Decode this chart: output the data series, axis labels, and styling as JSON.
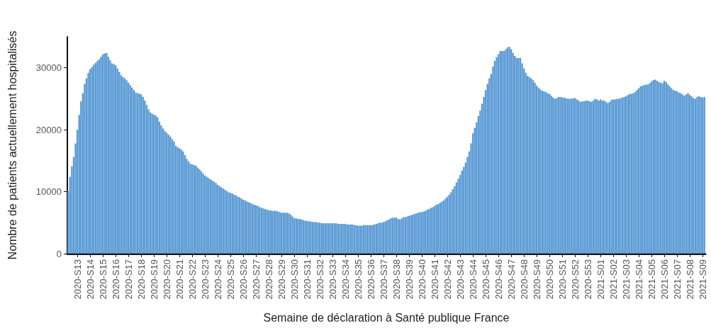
{
  "chart_data": {
    "type": "bar",
    "xlabel": "Semaine de déclaration à Santé publique France",
    "ylabel": "Nombre de patients actuellement hospitalisés",
    "categories": [
      null,
      null,
      null,
      null,
      null,
      "2020-S13",
      null,
      null,
      null,
      null,
      null,
      null,
      "2020-S14",
      null,
      null,
      null,
      null,
      null,
      null,
      "2020-S15",
      null,
      null,
      null,
      null,
      null,
      null,
      "2020-S16",
      null,
      null,
      null,
      null,
      null,
      null,
      "2020-S17",
      null,
      null,
      null,
      null,
      null,
      null,
      "2020-S18",
      null,
      null,
      null,
      null,
      null,
      null,
      "2020-S19",
      null,
      null,
      null,
      null,
      null,
      null,
      "2020-S20",
      null,
      null,
      null,
      null,
      null,
      null,
      "2020-S21",
      null,
      null,
      null,
      null,
      null,
      null,
      "2020-S22",
      null,
      null,
      null,
      null,
      null,
      null,
      "2020-S23",
      null,
      null,
      null,
      null,
      null,
      null,
      "2020-S24",
      null,
      null,
      null,
      null,
      null,
      null,
      "2020-S25",
      null,
      null,
      null,
      null,
      null,
      null,
      "2020-S26",
      null,
      null,
      null,
      null,
      null,
      null,
      "2020-S27",
      null,
      null,
      null,
      null,
      null,
      null,
      "2020-S28",
      null,
      null,
      null,
      null,
      null,
      null,
      "2020-S29",
      null,
      null,
      null,
      null,
      null,
      null,
      "2020-S30",
      null,
      null,
      null,
      null,
      null,
      null,
      "2020-S31",
      null,
      null,
      null,
      null,
      null,
      null,
      "2020-S32",
      null,
      null,
      null,
      null,
      null,
      null,
      "2020-S33",
      null,
      null,
      null,
      null,
      null,
      null,
      "2020-S34",
      null,
      null,
      null,
      null,
      null,
      null,
      "2020-S35",
      null,
      null,
      null,
      null,
      null,
      null,
      "2020-S36",
      null,
      null,
      null,
      null,
      null,
      null,
      "2020-S37",
      null,
      null,
      null,
      null,
      null,
      null,
      "2020-S38",
      null,
      null,
      null,
      null,
      null,
      null,
      "2020-S39",
      null,
      null,
      null,
      null,
      null,
      null,
      "2020-S40",
      null,
      null,
      null,
      null,
      null,
      null,
      "2020-S41",
      null,
      null,
      null,
      null,
      null,
      null,
      "2020-S42",
      null,
      null,
      null,
      null,
      null,
      null,
      "2020-S43",
      null,
      null,
      null,
      null,
      null,
      null,
      "2020-S44",
      null,
      null,
      null,
      null,
      null,
      null,
      "2020-S45",
      null,
      null,
      null,
      null,
      null,
      null,
      "2020-S46",
      null,
      null,
      null,
      null,
      null,
      null,
      "2020-S47",
      null,
      null,
      null,
      null,
      null,
      null,
      "2020-S48",
      null,
      null,
      null,
      null,
      null,
      null,
      "2020-S49",
      null,
      null,
      null,
      null,
      null,
      null,
      "2020-S50",
      null,
      null,
      null,
      null,
      null,
      null,
      "2020-S51",
      null,
      null,
      null,
      null,
      null,
      null,
      "2020-S52",
      null,
      null,
      null,
      null,
      null,
      null,
      "2020-S53",
      null,
      null,
      null,
      null,
      null,
      null,
      "2021-S01",
      null,
      null,
      null,
      null,
      null,
      null,
      "2021-S02",
      null,
      null,
      null,
      null,
      null,
      null,
      "2021-S03",
      null,
      null,
      null,
      null,
      null,
      null,
      "2021-S04",
      null,
      null,
      null,
      null,
      null,
      null,
      "2021-S05",
      null,
      null,
      null,
      null,
      null,
      null,
      "2021-S06",
      null,
      null,
      null,
      null,
      null,
      null,
      "2021-S07",
      null,
      null,
      null,
      null,
      null,
      null,
      "2021-S08",
      null,
      null,
      null,
      null,
      null,
      null,
      "2021-S09",
      null
    ],
    "values": [
      10100,
      12400,
      14100,
      15600,
      17800,
      20000,
      22400,
      24600,
      25900,
      27400,
      28300,
      29200,
      29800,
      30100,
      30500,
      30800,
      31100,
      31400,
      31800,
      32200,
      32300,
      32400,
      31800,
      31200,
      30700,
      30600,
      30400,
      29900,
      29300,
      28800,
      28500,
      28300,
      28000,
      27600,
      27200,
      26800,
      26400,
      26000,
      25900,
      25800,
      25700,
      25300,
      24700,
      24000,
      23300,
      22800,
      22600,
      22400,
      22300,
      22000,
      21300,
      20700,
      20200,
      19800,
      19500,
      19200,
      18900,
      18500,
      18100,
      17400,
      17200,
      17000,
      16800,
      16500,
      15900,
      15300,
      14900,
      14500,
      14400,
      14300,
      14200,
      13900,
      13600,
      13300,
      12900,
      12600,
      12400,
      12200,
      12000,
      11800,
      11600,
      11400,
      11100,
      10900,
      10700,
      10500,
      10300,
      10100,
      9900,
      9800,
      9700,
      9500,
      9400,
      9200,
      9100,
      8900,
      8700,
      8600,
      8400,
      8300,
      8200,
      8000,
      7900,
      7800,
      7700,
      7500,
      7400,
      7300,
      7200,
      7100,
      7000,
      7000,
      6900,
      6900,
      6900,
      6800,
      6700,
      6600,
      6600,
      6600,
      6600,
      6500,
      6300,
      6000,
      5700,
      5700,
      5600,
      5600,
      5500,
      5400,
      5300,
      5300,
      5200,
      5200,
      5100,
      5100,
      5100,
      5000,
      5000,
      4900,
      4900,
      4900,
      4900,
      4900,
      4900,
      4900,
      4900,
      4900,
      4800,
      4800,
      4800,
      4800,
      4800,
      4700,
      4700,
      4700,
      4700,
      4600,
      4600,
      4500,
      4500,
      4500,
      4600,
      4600,
      4600,
      4600,
      4600,
      4600,
      4700,
      4800,
      4900,
      5000,
      5000,
      5100,
      5200,
      5400,
      5500,
      5700,
      5800,
      5800,
      5800,
      5600,
      5500,
      5700,
      5900,
      5900,
      6000,
      6100,
      6200,
      6300,
      6400,
      6500,
      6600,
      6700,
      6700,
      6800,
      6900,
      7100,
      7200,
      7400,
      7500,
      7700,
      7900,
      8000,
      8200,
      8400,
      8600,
      8900,
      9200,
      9500,
      9900,
      10400,
      10900,
      11500,
      12100,
      12700,
      13400,
      14000,
      14700,
      15600,
      16500,
      17800,
      19400,
      20300,
      21200,
      22200,
      23100,
      24200,
      25300,
      26400,
      27400,
      28300,
      29000,
      30200,
      31100,
      31700,
      32200,
      32700,
      32700,
      32700,
      33000,
      33300,
      33400,
      33000,
      32400,
      31900,
      31600,
      31600,
      31600,
      30700,
      29900,
      29200,
      28700,
      28500,
      28300,
      28000,
      27600,
      27100,
      26800,
      26500,
      26300,
      26200,
      26100,
      25900,
      25800,
      25500,
      25200,
      25000,
      25100,
      25300,
      25300,
      25200,
      25200,
      25100,
      25000,
      25000,
      25000,
      25100,
      25100,
      24900,
      24700,
      24500,
      24600,
      24600,
      24700,
      24700,
      24600,
      24500,
      24700,
      25000,
      24900,
      24700,
      24900,
      24700,
      24700,
      24500,
      24300,
      24500,
      24800,
      24900,
      24900,
      25000,
      25000,
      25100,
      25200,
      25300,
      25400,
      25600,
      25800,
      25800,
      25900,
      26100,
      26400,
      26700,
      27000,
      27100,
      27200,
      27300,
      27300,
      27500,
      27800,
      28000,
      28100,
      27900,
      27700,
      27600,
      27500,
      27900,
      27700,
      27300,
      27000,
      26700,
      26400,
      26300,
      26200,
      26000,
      25900,
      25700,
      25500,
      25700,
      25900,
      25600,
      25400,
      25100,
      25000,
      25300,
      25400,
      25300,
      25200,
      25300
    ],
    "color": "#5b9bd5",
    "ylim": [
      0,
      35000
    ],
    "yticks": [
      0,
      10000,
      20000,
      30000
    ],
    "grid": false
  }
}
